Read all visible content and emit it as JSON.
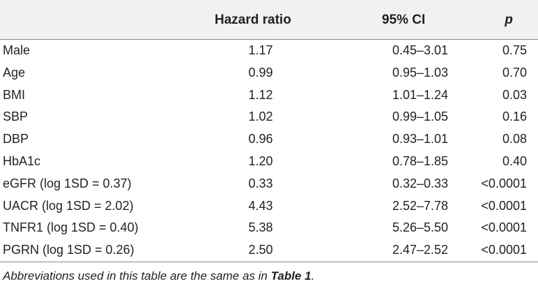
{
  "table": {
    "headers": {
      "hazard_ratio": "Hazard ratio",
      "ci": "95% CI",
      "p": "p"
    },
    "rows": [
      {
        "variable": "Male",
        "hr": "1.17",
        "ci": "0.45–3.01",
        "p": "0.75"
      },
      {
        "variable": "Age",
        "hr": "0.99",
        "ci": "0.95–1.03",
        "p": "0.70"
      },
      {
        "variable": "BMI",
        "hr": "1.12",
        "ci": "1.01–1.24",
        "p": "0.03"
      },
      {
        "variable": "SBP",
        "hr": "1.02",
        "ci": "0.99–1.05",
        "p": "0.16"
      },
      {
        "variable": "DBP",
        "hr": "0.96",
        "ci": "0.93–1.01",
        "p": "0.08"
      },
      {
        "variable": "HbA1c",
        "hr": "1.20",
        "ci": "0.78–1.85",
        "p": "0.40"
      },
      {
        "variable": "eGFR (log 1SD = 0.37)",
        "hr": "0.33",
        "ci": "0.32–0.33",
        "p": "<0.0001"
      },
      {
        "variable": "UACR (log 1SD = 2.02)",
        "hr": "4.43",
        "ci": "2.52–7.78",
        "p": "<0.0001"
      },
      {
        "variable": "TNFR1 (log 1SD = 0.40)",
        "hr": "5.38",
        "ci": "5.26–5.50",
        "p": "<0.0001"
      },
      {
        "variable": "PGRN (log 1SD = 0.26)",
        "hr": "2.50",
        "ci": "2.47–2.52",
        "p": "<0.0001"
      }
    ]
  },
  "footnote": {
    "prefix": "Abbreviations used in this table are the same as in ",
    "reference": "Table 1",
    "suffix": "."
  },
  "colors": {
    "header_background": "#f1f1f2",
    "text": "#231f20",
    "rule": "#8a8a8a"
  }
}
